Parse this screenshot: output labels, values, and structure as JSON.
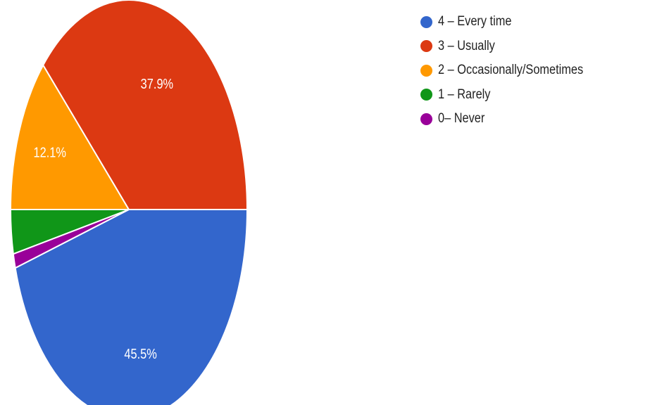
{
  "chart_data": {
    "type": "pie",
    "title": "",
    "legend_position": "right",
    "start_angle_deg": 90,
    "slices": [
      {
        "label": "4 – Every time",
        "value": 45.5,
        "display": "45.5%",
        "color": "#3366cc"
      },
      {
        "label": "0– Never",
        "value": 1.1,
        "display": "",
        "color": "#990099"
      },
      {
        "label": "1 – Rarely",
        "value": 3.4,
        "display": "",
        "color": "#109618"
      },
      {
        "label": "2 – Occasionally/Sometimes",
        "value": 12.1,
        "display": "12.1%",
        "color": "#ff9900"
      },
      {
        "label": "3 – Usually",
        "value": 37.9,
        "display": "37.9%",
        "color": "#dc3912"
      }
    ],
    "legend": [
      {
        "label": "4 – Every time",
        "color": "#3366cc"
      },
      {
        "label": "3 – Usually",
        "color": "#dc3912"
      },
      {
        "label": "2 – Occasionally/Sometimes",
        "color": "#ff9900"
      },
      {
        "label": "1 – Rarely",
        "color": "#109618"
      },
      {
        "label": "0– Never",
        "color": "#990099"
      }
    ]
  }
}
